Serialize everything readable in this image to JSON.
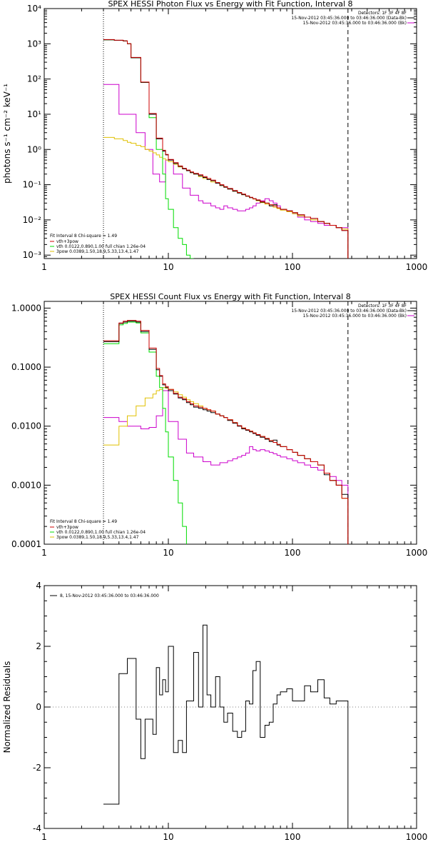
{
  "chart_data": [
    {
      "type": "line",
      "step": true,
      "title": "SPEX HESSI Photon Flux vs Energy with Fit Function, Interval 8",
      "ylabel": "photons s⁻¹ cm⁻² keV⁻¹",
      "xlabel": "",
      "xscale": "log",
      "yscale": "log",
      "xlim": [
        1,
        1000
      ],
      "ylim": [
        0.0008,
        10000
      ],
      "xticks": [
        1,
        10,
        100,
        1000
      ],
      "xtick_labels": [
        "1",
        "10",
        "100",
        "1000"
      ],
      "yticks": [
        0.001,
        0.01,
        0.1,
        1,
        10,
        100,
        1000,
        10000
      ],
      "ytick_labels": [
        "10⁻³",
        "10⁻²",
        "10⁻¹",
        "10⁰",
        "10¹",
        "10²",
        "10³",
        "10⁴"
      ],
      "vlines": [
        {
          "x": 3.0,
          "style": "dotted"
        },
        {
          "x": 280,
          "style": "dashed"
        }
      ],
      "header_lines": [
        "Detectors: 1F 3F 4F 8F",
        "15-Nov-2012 03:45:36.000 to 03:46:36.000 (Data-Bk)",
        "15-Nov-2012 03:45:36.000 to 03:46:36.000 (Bk)"
      ],
      "legend_title": "Fit Interval 8   Chi-square = 1.49",
      "x_edges": [
        3.0,
        3.33,
        3.67,
        4.0,
        4.33,
        4.67,
        5.0,
        5.5,
        6.0,
        6.5,
        7.0,
        7.5,
        8.0,
        8.5,
        9.0,
        9.5,
        10.0,
        11.0,
        12.0,
        13.0,
        14.0,
        15.0,
        16.0,
        17.5,
        19.0,
        20.5,
        22.0,
        24.0,
        26.0,
        28.0,
        30.0,
        33.0,
        36.0,
        39.0,
        42.0,
        45.0,
        48.0,
        51.0,
        55.0,
        60.0,
        65.0,
        70.0,
        75.0,
        80.0,
        90.0,
        100.0,
        110.0,
        125.0,
        140.0,
        160.0,
        180.0,
        200.0,
        225.0,
        250.0,
        280.0
      ],
      "series": [
        {
          "name": "Data-Bk",
          "color": "#000000",
          "values": [
            1300,
            1300,
            1250,
            1250,
            1200,
            1000,
            400,
            400,
            80,
            80,
            10,
            10,
            2.0,
            2.0,
            0.9,
            0.7,
            0.5,
            0.4,
            0.33,
            0.28,
            0.25,
            0.22,
            0.2,
            0.18,
            0.16,
            0.14,
            0.13,
            0.11,
            0.095,
            0.085,
            0.075,
            0.065,
            0.058,
            0.052,
            0.047,
            0.043,
            0.04,
            0.036,
            0.032,
            0.03,
            0.025,
            0.027,
            0.022,
            0.02,
            0.018,
            0.016,
            0.014,
            0.012,
            0.011,
            0.009,
            0.008,
            0.007,
            0.006,
            0.005
          ]
        },
        {
          "name": "Bk",
          "color": "#cc00cc",
          "values": [
            70,
            70,
            70,
            10,
            10,
            10,
            10,
            3.0,
            3.0,
            1.0,
            1.0,
            0.2,
            0.2,
            0.12,
            0.12,
            0.5,
            0.5,
            0.2,
            0.2,
            0.08,
            0.08,
            0.05,
            0.05,
            0.035,
            0.03,
            0.03,
            0.025,
            0.022,
            0.02,
            0.025,
            0.022,
            0.02,
            0.018,
            0.018,
            0.02,
            0.022,
            0.025,
            0.03,
            0.035,
            0.04,
            0.035,
            0.03,
            0.025,
            0.02,
            0.018,
            0.015,
            0.012,
            0.01,
            0.009,
            0.008,
            0.007,
            0.007,
            0.006,
            0.006
          ]
        },
        {
          "name": "vth+3pow",
          "color": "#cc0000",
          "values": [
            1320,
            1320,
            1270,
            1270,
            1220,
            1010,
            410,
            410,
            82,
            82,
            10.5,
            10.5,
            2.1,
            2.1,
            0.95,
            0.72,
            0.52,
            0.42,
            0.34,
            0.29,
            0.26,
            0.23,
            0.21,
            0.19,
            0.17,
            0.15,
            0.135,
            0.115,
            0.1,
            0.088,
            0.078,
            0.068,
            0.06,
            0.054,
            0.048,
            0.044,
            0.04,
            0.037,
            0.033,
            0.03,
            0.027,
            0.025,
            0.022,
            0.02,
            0.018,
            0.016,
            0.014,
            0.012,
            0.011,
            0.009,
            0.008,
            0.007,
            0.006,
            0.005
          ]
        },
        {
          "name": "vth 0.0122,0.890,1.00  full chian 1.26e-04",
          "color": "#00dd00",
          "values": [
            1300,
            1300,
            1250,
            1250,
            1200,
            1000,
            400,
            400,
            80,
            80,
            8,
            8,
            1.0,
            1.0,
            0.2,
            0.04,
            0.02,
            0.006,
            0.003,
            0.002,
            0.001,
            0.0008
          ]
        },
        {
          "name": "3pow 0.0389,1.50,18.9,5.33,13.4,1.47",
          "color": "#e0c000",
          "values": [
            2.2,
            2.2,
            2.0,
            2.0,
            1.8,
            1.6,
            1.5,
            1.3,
            1.2,
            1.0,
            0.9,
            0.8,
            0.7,
            0.6,
            0.55,
            0.5,
            0.45,
            0.38,
            0.32,
            0.28,
            0.25,
            0.22,
            0.2,
            0.17,
            0.15,
            0.14,
            0.12,
            0.11,
            0.095,
            0.085,
            0.075,
            0.065,
            0.058,
            0.052,
            0.047,
            0.043,
            0.039,
            0.035,
            0.031,
            0.028,
            0.025,
            0.023,
            0.021,
            0.019,
            0.017,
            0.015,
            0.013,
            0.012,
            0.01,
            0.009,
            0.008,
            0.007,
            0.006,
            0.0055
          ]
        }
      ],
      "legend": [
        {
          "label": "vth+3pow",
          "color": "#cc0000"
        },
        {
          "label": "vth 0.0122,0.890,1.00  full chian 1.26e-04",
          "color": "#00dd00"
        },
        {
          "label": "3pow 0.0389,1.50,18.9,5.33,13.4,1.47",
          "color": "#e0c000"
        }
      ]
    },
    {
      "type": "line",
      "step": true,
      "title": "SPEX HESSI Count Flux vs Energy with Fit Function, Interval 8",
      "ylabel": "",
      "xlabel": "",
      "xscale": "log",
      "yscale": "log",
      "xlim": [
        1,
        1000
      ],
      "ylim": [
        0.0001,
        1.3
      ],
      "xticks": [
        1,
        10,
        100,
        1000
      ],
      "xtick_labels": [
        "1",
        "10",
        "100",
        "1000"
      ],
      "yticks": [
        0.0001,
        0.001,
        0.01,
        0.1,
        1.0
      ],
      "ytick_labels": [
        "0.0001",
        "0.0010",
        "0.0100",
        "0.1000",
        "1.0000"
      ],
      "vlines": [
        {
          "x": 3.0,
          "style": "dotted"
        },
        {
          "x": 280,
          "style": "dashed"
        }
      ],
      "header_lines": [
        "Detectors: 1F 3F 4F 8F",
        "15-Nov-2012 03:45:36.000 to 03:46:36.000 (Data-Bk)",
        "15-Nov-2012 03:45:36.000 to 03:46:36.000 (Bk)"
      ],
      "legend_title": "Fit Interval 8   Chi-square = 1.49",
      "x_edges": [
        3.0,
        3.33,
        3.67,
        4.0,
        4.33,
        4.67,
        5.0,
        5.5,
        6.0,
        6.5,
        7.0,
        7.5,
        8.0,
        8.5,
        9.0,
        9.5,
        10.0,
        11.0,
        12.0,
        13.0,
        14.0,
        15.0,
        16.0,
        17.5,
        19.0,
        20.5,
        22.0,
        24.0,
        26.0,
        28.0,
        30.0,
        33.0,
        36.0,
        39.0,
        42.0,
        45.0,
        48.0,
        51.0,
        55.0,
        60.0,
        65.0,
        70.0,
        75.0,
        80.0,
        90.0,
        100.0,
        110.0,
        125.0,
        140.0,
        160.0,
        180.0,
        200.0,
        225.0,
        250.0,
        280.0
      ],
      "series": [
        {
          "name": "Data-Bk",
          "color": "#000000",
          "values": [
            0.27,
            0.27,
            0.27,
            0.55,
            0.58,
            0.6,
            0.6,
            0.58,
            0.4,
            0.4,
            0.2,
            0.2,
            0.09,
            0.07,
            0.05,
            0.045,
            0.04,
            0.035,
            0.03,
            0.028,
            0.025,
            0.023,
            0.021,
            0.02,
            0.019,
            0.018,
            0.017,
            0.016,
            0.015,
            0.014,
            0.0125,
            0.0112,
            0.01,
            0.009,
            0.0085,
            0.008,
            0.0075,
            0.007,
            0.0065,
            0.006,
            0.0055,
            0.0058,
            0.0048,
            0.0045,
            0.004,
            0.0036,
            0.0032,
            0.0028,
            0.0025,
            0.0022,
            0.0015,
            0.0012,
            0.001,
            0.0007
          ]
        },
        {
          "name": "Bk",
          "color": "#cc00cc",
          "values": [
            0.014,
            0.014,
            0.014,
            0.012,
            0.012,
            0.01,
            0.01,
            0.01,
            0.009,
            0.009,
            0.0095,
            0.0095,
            0.015,
            0.015,
            0.04,
            0.04,
            0.012,
            0.012,
            0.006,
            0.006,
            0.0035,
            0.0035,
            0.003,
            0.003,
            0.0025,
            0.0025,
            0.0022,
            0.0022,
            0.0024,
            0.0024,
            0.0026,
            0.0028,
            0.003,
            0.0032,
            0.0035,
            0.0045,
            0.004,
            0.0038,
            0.004,
            0.0038,
            0.0036,
            0.0034,
            0.0032,
            0.003,
            0.0028,
            0.0026,
            0.0024,
            0.0022,
            0.002,
            0.0018,
            0.0016,
            0.0014,
            0.0012,
            0.001
          ]
        },
        {
          "name": "vth+3pow",
          "color": "#cc0000",
          "values": [
            0.28,
            0.28,
            0.28,
            0.56,
            0.6,
            0.62,
            0.62,
            0.6,
            0.42,
            0.42,
            0.21,
            0.21,
            0.095,
            0.072,
            0.052,
            0.047,
            0.042,
            0.036,
            0.031,
            0.029,
            0.026,
            0.024,
            0.022,
            0.021,
            0.02,
            0.019,
            0.018,
            0.016,
            0.015,
            0.014,
            0.0128,
            0.0115,
            0.0102,
            0.0093,
            0.0087,
            0.0082,
            0.0077,
            0.0072,
            0.0067,
            0.0062,
            0.0057,
            0.0053,
            0.0049,
            0.0045,
            0.004,
            0.0036,
            0.0032,
            0.0028,
            0.0025,
            0.0022,
            0.0016,
            0.0012,
            0.001,
            0.0006
          ]
        },
        {
          "name": "vth 0.0122,0.890,1.00  full chian 1.26e-04",
          "color": "#00dd00",
          "values": [
            0.25,
            0.25,
            0.25,
            0.52,
            0.55,
            0.58,
            0.58,
            0.56,
            0.38,
            0.38,
            0.18,
            0.18,
            0.07,
            0.045,
            0.02,
            0.008,
            0.003,
            0.0012,
            0.0005,
            0.0002
          ]
        },
        {
          "name": "3pow 0.0389,1.50,18.9,5.33,13.4,1.47",
          "color": "#e0c000",
          "values": [
            0.0048,
            0.0048,
            0.0048,
            0.01,
            0.01,
            0.015,
            0.015,
            0.022,
            0.022,
            0.03,
            0.03,
            0.035,
            0.04,
            0.042,
            0.045,
            0.044,
            0.042,
            0.038,
            0.034,
            0.031,
            0.028,
            0.026,
            0.024,
            0.022,
            0.02,
            0.019,
            0.018,
            0.016,
            0.015,
            0.014,
            0.0128,
            0.0115,
            0.0102,
            0.0093,
            0.0087,
            0.0082,
            0.0077,
            0.0072,
            0.0067,
            0.0062,
            0.0057,
            0.0053,
            0.0049,
            0.0045,
            0.004,
            0.0036,
            0.0032,
            0.0028,
            0.0025,
            0.0022,
            0.0016,
            0.0012,
            0.001,
            0.0006
          ]
        }
      ],
      "legend": [
        {
          "label": "vth+3pow",
          "color": "#cc0000"
        },
        {
          "label": "vth 0.0122,0.890,1.00  full chian 1.26e-04",
          "color": "#00dd00"
        },
        {
          "label": "3pow 0.0389,1.50,18.9,5.33,13.4,1.47",
          "color": "#e0c000"
        }
      ]
    },
    {
      "type": "line",
      "step": true,
      "title": "",
      "ylabel": "Normalized Residuals",
      "xlabel": "",
      "xscale": "log",
      "yscale": "linear",
      "xlim": [
        1,
        1000
      ],
      "ylim": [
        -4,
        4
      ],
      "xticks": [
        1,
        10,
        100,
        1000
      ],
      "xtick_labels": [
        "1",
        "10",
        "100",
        "1000"
      ],
      "yticks": [
        -4,
        -2,
        0,
        2,
        4
      ],
      "ytick_labels": [
        "-4",
        "-2",
        "0",
        "2",
        "4"
      ],
      "legend": [
        {
          "label": "8, 15-Nov-2012 03:45:36.000 to 03:46:36.000",
          "color": "#000000"
        }
      ],
      "x_edges": [
        3.0,
        3.33,
        3.67,
        4.0,
        4.33,
        4.67,
        5.0,
        5.5,
        6.0,
        6.5,
        7.0,
        7.5,
        8.0,
        8.5,
        9.0,
        9.5,
        10.0,
        11.0,
        12.0,
        13.0,
        14.0,
        15.0,
        16.0,
        17.5,
        19.0,
        20.5,
        22.0,
        24.0,
        26.0,
        28.0,
        30.0,
        33.0,
        36.0,
        39.0,
        42.0,
        45.0,
        48.0,
        51.0,
        55.0,
        60.0,
        65.0,
        70.0,
        75.0,
        80.0,
        90.0,
        100.0,
        110.0,
        125.0,
        140.0,
        160.0,
        180.0,
        200.0,
        225.0,
        250.0,
        280.0
      ],
      "series": [
        {
          "name": "8, 15-Nov-2012 03:45:36.000 to 03:46:36.000",
          "color": "#000000",
          "values": [
            -3.2,
            -3.2,
            -3.2,
            1.1,
            1.1,
            1.6,
            1.6,
            -0.4,
            -1.7,
            -0.4,
            -0.4,
            -0.9,
            1.3,
            0.4,
            0.9,
            0.5,
            2.0,
            -1.5,
            -1.1,
            -1.5,
            0.2,
            0.2,
            1.8,
            0.0,
            2.7,
            0.4,
            0.0,
            1.0,
            0.0,
            -0.5,
            -0.2,
            -0.8,
            -1.0,
            -0.8,
            0.2,
            0.1,
            1.2,
            1.5,
            -1.0,
            -0.6,
            -0.5,
            0.1,
            0.4,
            0.5,
            0.6,
            0.2,
            0.2,
            0.7,
            0.5,
            0.9,
            0.3,
            0.1,
            0.2,
            0.2
          ]
        }
      ]
    }
  ]
}
